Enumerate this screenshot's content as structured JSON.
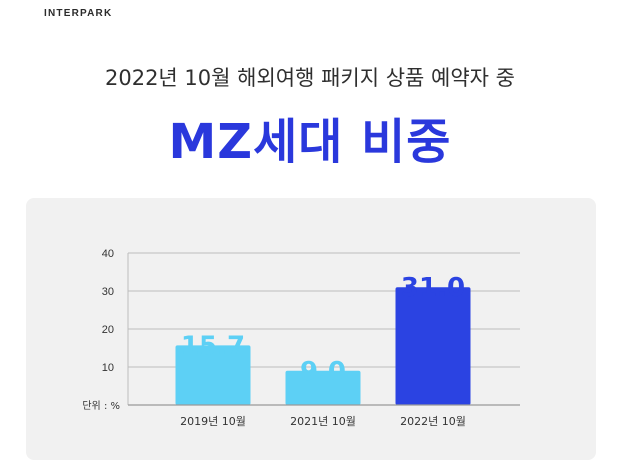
{
  "brand": "INTERPARK",
  "header": {
    "subtitle": "2022년 10월 해외여행 패키지 상품 예약자 중",
    "title": "MZ세대 비중"
  },
  "colors": {
    "title": "#2a38dc",
    "bar_light": "#5dd0f5",
    "bar_dark": "#2b43e2",
    "panel_bg": "#f1f1f1",
    "grid": "#bdbdbd"
  },
  "chart_data": {
    "type": "bar",
    "unit_label": "단위 : %",
    "categories": [
      "2019년 10월",
      "2021년 10월",
      "2022년 10월"
    ],
    "values": [
      15.7,
      9.0,
      31.0
    ],
    "value_labels": [
      "15.7",
      "9.0",
      "31.0"
    ],
    "highlight_index": 2,
    "yticks": [
      10,
      20,
      30,
      40
    ],
    "ytick_labels": [
      "10",
      "20",
      "30",
      "40"
    ],
    "ylim": [
      0,
      40
    ],
    "grid": true
  }
}
